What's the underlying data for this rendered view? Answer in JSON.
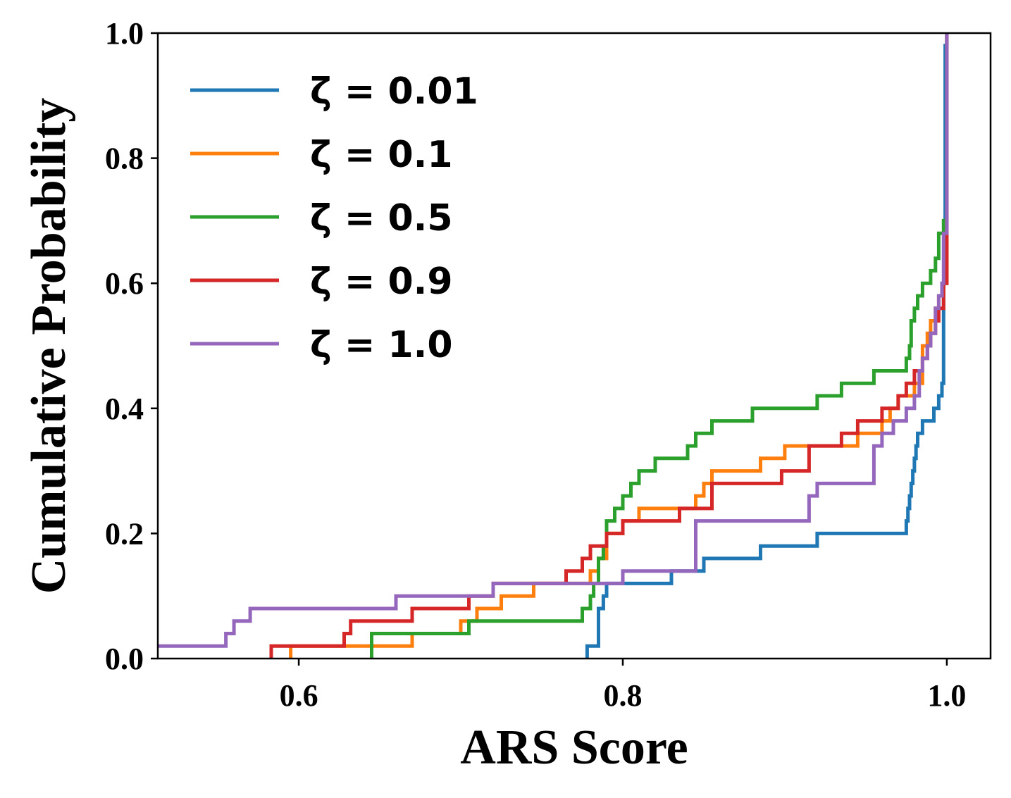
{
  "chart_data": {
    "type": "line",
    "xlabel": "ARS Score",
    "ylabel": "Cumulative Probability",
    "xlim": [
      0.513,
      1.027
    ],
    "ylim": [
      0.0,
      1.0
    ],
    "xticks": [
      {
        "value": 0.6,
        "label": "0.6"
      },
      {
        "value": 0.8,
        "label": "0.8"
      },
      {
        "value": 1.0,
        "label": "1.0"
      }
    ],
    "yticks": [
      {
        "value": 0.0,
        "label": "0.0"
      },
      {
        "value": 0.2,
        "label": "0.2"
      },
      {
        "value": 0.4,
        "label": "0.4"
      },
      {
        "value": 0.6,
        "label": "0.6"
      },
      {
        "value": 0.8,
        "label": "0.8"
      },
      {
        "value": 1.0,
        "label": "1.0"
      }
    ],
    "legend_position": "upper-left",
    "grid": false,
    "series": [
      {
        "name": "ζ = 0.01",
        "color": "#1f77b4",
        "x": [
          0.778,
          0.785,
          0.788,
          0.79,
          0.795,
          0.83,
          0.85,
          0.865,
          0.885,
          0.92,
          0.975,
          0.976,
          0.977,
          0.978,
          0.979,
          0.98,
          0.981,
          0.982,
          0.984,
          0.985,
          0.988,
          0.992,
          0.995,
          0.997,
          0.998,
          0.999,
          1.0
        ],
        "y": [
          0.02,
          0.08,
          0.1,
          0.12,
          0.12,
          0.14,
          0.16,
          0.16,
          0.18,
          0.2,
          0.22,
          0.24,
          0.26,
          0.28,
          0.3,
          0.32,
          0.34,
          0.36,
          0.36,
          0.38,
          0.38,
          0.4,
          0.42,
          0.44,
          0.6,
          0.98,
          1.0
        ]
      },
      {
        "name": "ζ = 0.1",
        "color": "#ff7f0e",
        "x": [
          0.595,
          0.67,
          0.7,
          0.71,
          0.725,
          0.745,
          0.78,
          0.785,
          0.79,
          0.8,
          0.81,
          0.845,
          0.85,
          0.855,
          0.885,
          0.9,
          0.92,
          0.945,
          0.96,
          0.965,
          0.97,
          0.98,
          0.985,
          0.988,
          0.99,
          0.993,
          0.995,
          0.998,
          1.0
        ],
        "y": [
          0.02,
          0.04,
          0.06,
          0.08,
          0.1,
          0.12,
          0.14,
          0.16,
          0.2,
          0.22,
          0.24,
          0.26,
          0.28,
          0.3,
          0.32,
          0.34,
          0.34,
          0.36,
          0.38,
          0.4,
          0.42,
          0.44,
          0.5,
          0.52,
          0.54,
          0.56,
          0.58,
          0.6,
          1.0
        ]
      },
      {
        "name": "ζ = 0.5",
        "color": "#2ca02c",
        "x": [
          0.645,
          0.705,
          0.775,
          0.78,
          0.782,
          0.785,
          0.788,
          0.79,
          0.795,
          0.8,
          0.805,
          0.81,
          0.82,
          0.84,
          0.845,
          0.855,
          0.88,
          0.92,
          0.935,
          0.955,
          0.975,
          0.977,
          0.978,
          0.98,
          0.982,
          0.985,
          0.99,
          0.993,
          0.995,
          0.998,
          1.0
        ],
        "y": [
          0.04,
          0.06,
          0.08,
          0.1,
          0.12,
          0.16,
          0.18,
          0.22,
          0.24,
          0.26,
          0.28,
          0.3,
          0.32,
          0.34,
          0.36,
          0.38,
          0.4,
          0.42,
          0.44,
          0.46,
          0.48,
          0.5,
          0.54,
          0.56,
          0.58,
          0.6,
          0.62,
          0.64,
          0.68,
          0.7,
          1.0
        ]
      },
      {
        "name": "ζ = 0.9",
        "color": "#d62728",
        "x": [
          0.583,
          0.628,
          0.632,
          0.67,
          0.705,
          0.72,
          0.765,
          0.775,
          0.78,
          0.79,
          0.8,
          0.835,
          0.855,
          0.898,
          0.915,
          0.935,
          0.945,
          0.96,
          0.97,
          0.975,
          0.98,
          0.985,
          0.988,
          0.99,
          0.993,
          0.995,
          0.998,
          1.0
        ],
        "y": [
          0.02,
          0.04,
          0.06,
          0.08,
          0.1,
          0.12,
          0.14,
          0.16,
          0.18,
          0.2,
          0.22,
          0.24,
          0.28,
          0.3,
          0.34,
          0.36,
          0.38,
          0.4,
          0.42,
          0.44,
          0.46,
          0.48,
          0.5,
          0.52,
          0.54,
          0.56,
          0.6,
          1.0
        ]
      },
      {
        "name": "ζ = 1.0",
        "color": "#9467bd",
        "x": [
          0.455,
          0.555,
          0.56,
          0.57,
          0.66,
          0.72,
          0.8,
          0.845,
          0.915,
          0.92,
          0.955,
          0.96,
          0.967,
          0.975,
          0.98,
          0.983,
          0.985,
          0.988,
          0.99,
          0.993,
          0.995,
          0.997,
          0.998,
          1.0
        ],
        "y": [
          0.02,
          0.04,
          0.06,
          0.08,
          0.1,
          0.12,
          0.14,
          0.22,
          0.26,
          0.28,
          0.34,
          0.36,
          0.38,
          0.4,
          0.42,
          0.46,
          0.48,
          0.5,
          0.52,
          0.56,
          0.58,
          0.6,
          0.68,
          1.0
        ]
      }
    ]
  }
}
